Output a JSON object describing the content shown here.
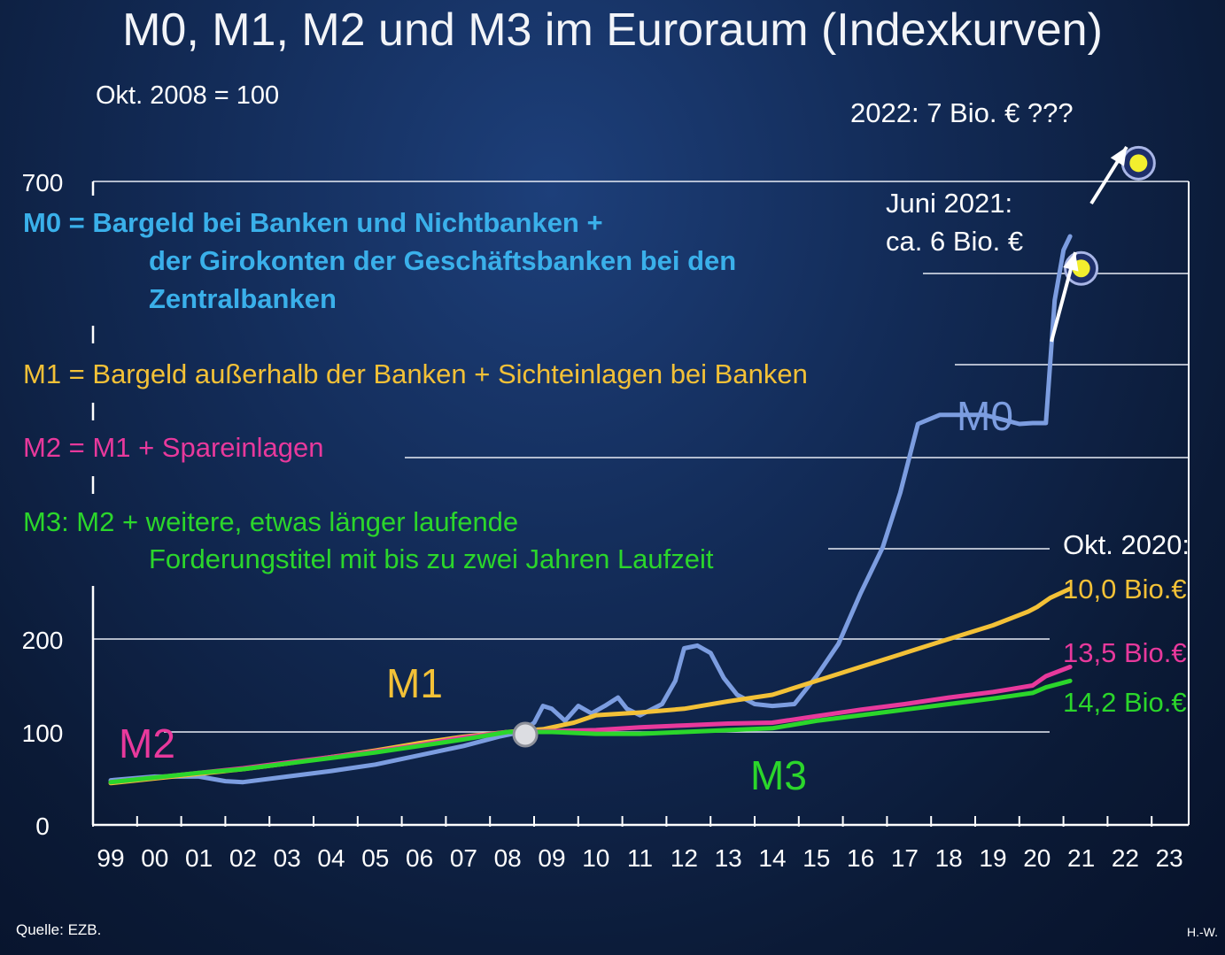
{
  "title": "M0, M1, M2 und M3 im Euroraum (Indexkurven)",
  "base_note": "Okt. 2008 = 100",
  "definitions": {
    "m0_line1": "M0 = Bargeld bei Banken und Nichtbanken +",
    "m0_line2": "der Girokonten der Geschäftsbanken bei den",
    "m0_line3": "Zentralbanken",
    "m1": "M1 = Bargeld außerhalb der Banken + Sichteinlagen bei Banken",
    "m2": "M2 = M1 + Spareinlagen",
    "m3_line1": "M3: M2 + weitere, etwas länger laufende",
    "m3_line2": "Forderungstitel mit bis zu zwei Jahren Laufzeit"
  },
  "annotations": {
    "prognosis_2022": "2022: 7 Bio. € ???",
    "june2021_line1": "Juni 2021:",
    "june2021_line2": "ca. 6 Bio. €",
    "oct2020": "Okt. 2020:",
    "m1_value": "10,0 Bio.€",
    "m2_value": "13,5 Bio.€",
    "m3_value": "14,2 Bio.€"
  },
  "source": "Quelle: EZB.",
  "author": "H.-W.",
  "colors": {
    "m0": "#7c9de0",
    "m1": "#f3c137",
    "m2": "#e8399c",
    "m3": "#2bd62b",
    "axis": "#ffffff",
    "marker": "#f2ee2e"
  },
  "chart_data": {
    "type": "line",
    "title": "M0, M1, M2 und M3 im Euroraum (Indexkurven)",
    "x_tick_labels": [
      "99",
      "00",
      "01",
      "02",
      "03",
      "04",
      "05",
      "06",
      "07",
      "08",
      "09",
      "10",
      "11",
      "12",
      "13",
      "14",
      "15",
      "16",
      "17",
      "18",
      "19",
      "20",
      "21",
      "22",
      "23"
    ],
    "y_tick_labels": [
      "0",
      "100",
      "200",
      "700"
    ],
    "y_ticks": [
      0,
      100,
      200,
      700
    ],
    "y_scale_note": "broken axis: equal spacing between 0, 100, 200 and above",
    "xlim": [
      1999,
      2023
    ],
    "ylim": [
      0,
      700
    ],
    "series": [
      {
        "name": "M0",
        "label": "M0",
        "points": [
          [
            1999,
            48
          ],
          [
            2000,
            52
          ],
          [
            2001,
            52
          ],
          [
            2001.6,
            47
          ],
          [
            2002,
            46
          ],
          [
            2003,
            52
          ],
          [
            2004,
            58
          ],
          [
            2005,
            65
          ],
          [
            2006,
            75
          ],
          [
            2007,
            85
          ],
          [
            2007.8,
            95
          ],
          [
            2008.3,
            100
          ],
          [
            2008.6,
            110
          ],
          [
            2008.8,
            128
          ],
          [
            2009.0,
            125
          ],
          [
            2009.3,
            112
          ],
          [
            2009.6,
            128
          ],
          [
            2009.9,
            120
          ],
          [
            2010.2,
            128
          ],
          [
            2010.5,
            137
          ],
          [
            2010.7,
            125
          ],
          [
            2011.0,
            118
          ],
          [
            2011.5,
            130
          ],
          [
            2011.8,
            155
          ],
          [
            2012.0,
            190
          ],
          [
            2012.3,
            193
          ],
          [
            2012.6,
            185
          ],
          [
            2012.9,
            158
          ],
          [
            2013.2,
            140
          ],
          [
            2013.6,
            130
          ],
          [
            2014.0,
            128
          ],
          [
            2014.5,
            130
          ],
          [
            2015.0,
            160
          ],
          [
            2015.5,
            195
          ],
          [
            2016.0,
            250
          ],
          [
            2016.5,
            300
          ],
          [
            2016.9,
            360
          ],
          [
            2017.3,
            435
          ],
          [
            2017.8,
            445
          ],
          [
            2018.2,
            445
          ],
          [
            2018.8,
            445
          ],
          [
            2019.2,
            440
          ],
          [
            2019.6,
            435
          ],
          [
            2019.9,
            436
          ],
          [
            2020.2,
            436
          ],
          [
            2020.4,
            570
          ],
          [
            2020.6,
            625
          ],
          [
            2020.75,
            640
          ]
        ]
      },
      {
        "name": "M1",
        "label": "M1",
        "points": [
          [
            1999,
            45
          ],
          [
            2000,
            50
          ],
          [
            2001,
            55
          ],
          [
            2002,
            60
          ],
          [
            2003,
            66
          ],
          [
            2004,
            73
          ],
          [
            2005,
            80
          ],
          [
            2006,
            88
          ],
          [
            2007,
            95
          ],
          [
            2008,
            100
          ],
          [
            2008.8,
            103
          ],
          [
            2009.5,
            110
          ],
          [
            2010,
            118
          ],
          [
            2011,
            121
          ],
          [
            2012,
            125
          ],
          [
            2013,
            133
          ],
          [
            2014,
            140
          ],
          [
            2015,
            155
          ],
          [
            2016,
            170
          ],
          [
            2017,
            185
          ],
          [
            2018,
            200
          ],
          [
            2019,
            215
          ],
          [
            2019.8,
            230
          ],
          [
            2020,
            235
          ],
          [
            2020.3,
            245
          ],
          [
            2020.75,
            255
          ]
        ]
      },
      {
        "name": "M2",
        "label": "M2",
        "points": [
          [
            1999,
            46
          ],
          [
            2000,
            51
          ],
          [
            2001,
            56
          ],
          [
            2002,
            61
          ],
          [
            2003,
            67
          ],
          [
            2004,
            73
          ],
          [
            2005,
            79
          ],
          [
            2006,
            86
          ],
          [
            2007,
            94
          ],
          [
            2008,
            100
          ],
          [
            2009,
            101
          ],
          [
            2010,
            102
          ],
          [
            2011,
            105
          ],
          [
            2012,
            107
          ],
          [
            2013,
            109
          ],
          [
            2014,
            110
          ],
          [
            2015,
            117
          ],
          [
            2016,
            124
          ],
          [
            2017,
            130
          ],
          [
            2018,
            137
          ],
          [
            2019,
            143
          ],
          [
            2019.9,
            150
          ],
          [
            2020.2,
            160
          ],
          [
            2020.75,
            170
          ]
        ]
      },
      {
        "name": "M3",
        "label": "M3",
        "points": [
          [
            1999,
            46
          ],
          [
            2000,
            51
          ],
          [
            2001,
            56
          ],
          [
            2002,
            60
          ],
          [
            2003,
            66
          ],
          [
            2004,
            72
          ],
          [
            2005,
            78
          ],
          [
            2006,
            85
          ],
          [
            2007,
            92
          ],
          [
            2008,
            100
          ],
          [
            2009,
            100
          ],
          [
            2010,
            98
          ],
          [
            2011,
            98
          ],
          [
            2012,
            100
          ],
          [
            2013,
            102
          ],
          [
            2014,
            104
          ],
          [
            2015,
            112
          ],
          [
            2016,
            118
          ],
          [
            2017,
            124
          ],
          [
            2018,
            130
          ],
          [
            2019,
            136
          ],
          [
            2019.9,
            142
          ],
          [
            2020.2,
            148
          ],
          [
            2020.75,
            155
          ]
        ]
      }
    ],
    "extra_points": [
      {
        "label": "Juni 2021: ca. 6 Bio. €",
        "x": 2021.0,
        "y": 605
      },
      {
        "label": "2022: 7 Bio. € ???",
        "x": 2022.3,
        "y": 720
      },
      {
        "label": "Okt. 2008 = 100",
        "x": 2008.8,
        "y": 100
      }
    ],
    "legend": "inline labels",
    "grid": "partial horizontal lines"
  }
}
